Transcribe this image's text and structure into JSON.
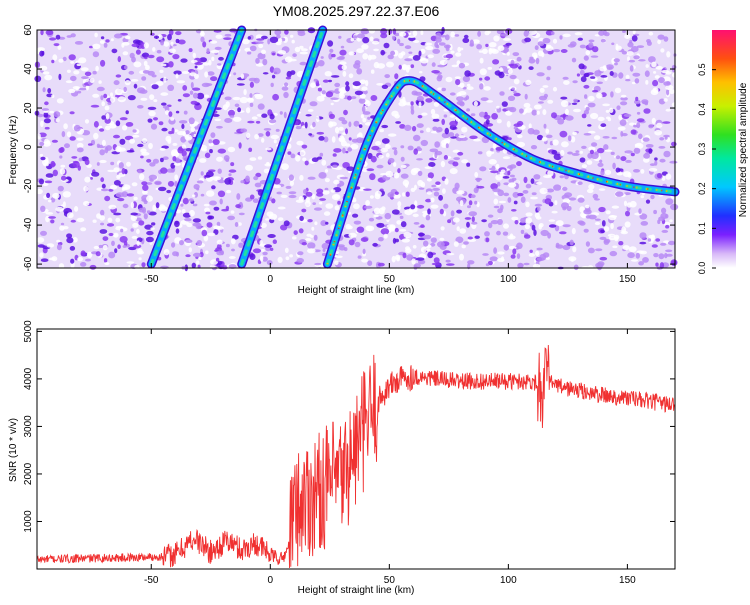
{
  "title": "YM08.2025.297.22.37.E06",
  "chart_data": [
    {
      "type": "heatmap",
      "xlabel": "Height of straight line (km)",
      "ylabel": "Frequency (Hz)",
      "xlim": [
        -98,
        170
      ],
      "ylim": [
        -62,
        60
      ],
      "x_ticks": [
        -50,
        0,
        50,
        100,
        150
      ],
      "y_ticks": [
        -60,
        -40,
        -20,
        0,
        20,
        40,
        60
      ],
      "colorbar": {
        "label": "Normalized spectral amplitude",
        "range": [
          0,
          0.6
        ],
        "ticks": [
          0.0,
          0.1,
          0.2,
          0.3,
          0.4,
          0.5
        ],
        "colormap": "rainbow"
      },
      "traces": [
        {
          "description": "straight line trace 1",
          "points": [
            [
              -50,
              -60
            ],
            [
              -12,
              60
            ]
          ]
        },
        {
          "description": "straight line trace 2",
          "points": [
            [
              -12,
              -60
            ],
            [
              22,
              60
            ]
          ]
        },
        {
          "description": "curved trace",
          "points": [
            [
              24,
              -60
            ],
            [
              40,
              0
            ],
            [
              52,
              28
            ],
            [
              59,
              34
            ],
            [
              70,
              26
            ],
            [
              90,
              8
            ],
            [
              110,
              -6
            ],
            [
              130,
              -14
            ],
            [
              150,
              -20
            ],
            [
              170,
              -23
            ]
          ]
        }
      ]
    },
    {
      "type": "line",
      "xlabel": "Height of straight line (km)",
      "ylabel": "SNR (10 * v/v)",
      "xlim": [
        -98,
        170
      ],
      "ylim": [
        0,
        5050
      ],
      "x_ticks": [
        -50,
        0,
        50,
        100,
        150
      ],
      "y_ticks": [
        1000,
        2000,
        3000,
        4000,
        5000
      ],
      "color": "#f03030",
      "series": [
        {
          "x": [
            -98,
            -80,
            -60,
            -45,
            -40,
            -32,
            -25,
            -18,
            -12,
            -6,
            0,
            5,
            8,
            10,
            15,
            20,
            25,
            30,
            35,
            40,
            45,
            50,
            55,
            60,
            70,
            80,
            90,
            100,
            110,
            113,
            114,
            115,
            117,
            120,
            130,
            140,
            150,
            160,
            170
          ],
          "values": [
            200,
            220,
            240,
            260,
            300,
            650,
            350,
            600,
            400,
            550,
            300,
            200,
            500,
            1200,
            1500,
            1600,
            1800,
            1900,
            2400,
            3000,
            3500,
            3850,
            4000,
            4050,
            4000,
            3950,
            3950,
            3950,
            3950,
            3900,
            3850,
            3800,
            3950,
            3850,
            3750,
            3650,
            3600,
            3520,
            3450
          ]
        }
      ]
    }
  ]
}
